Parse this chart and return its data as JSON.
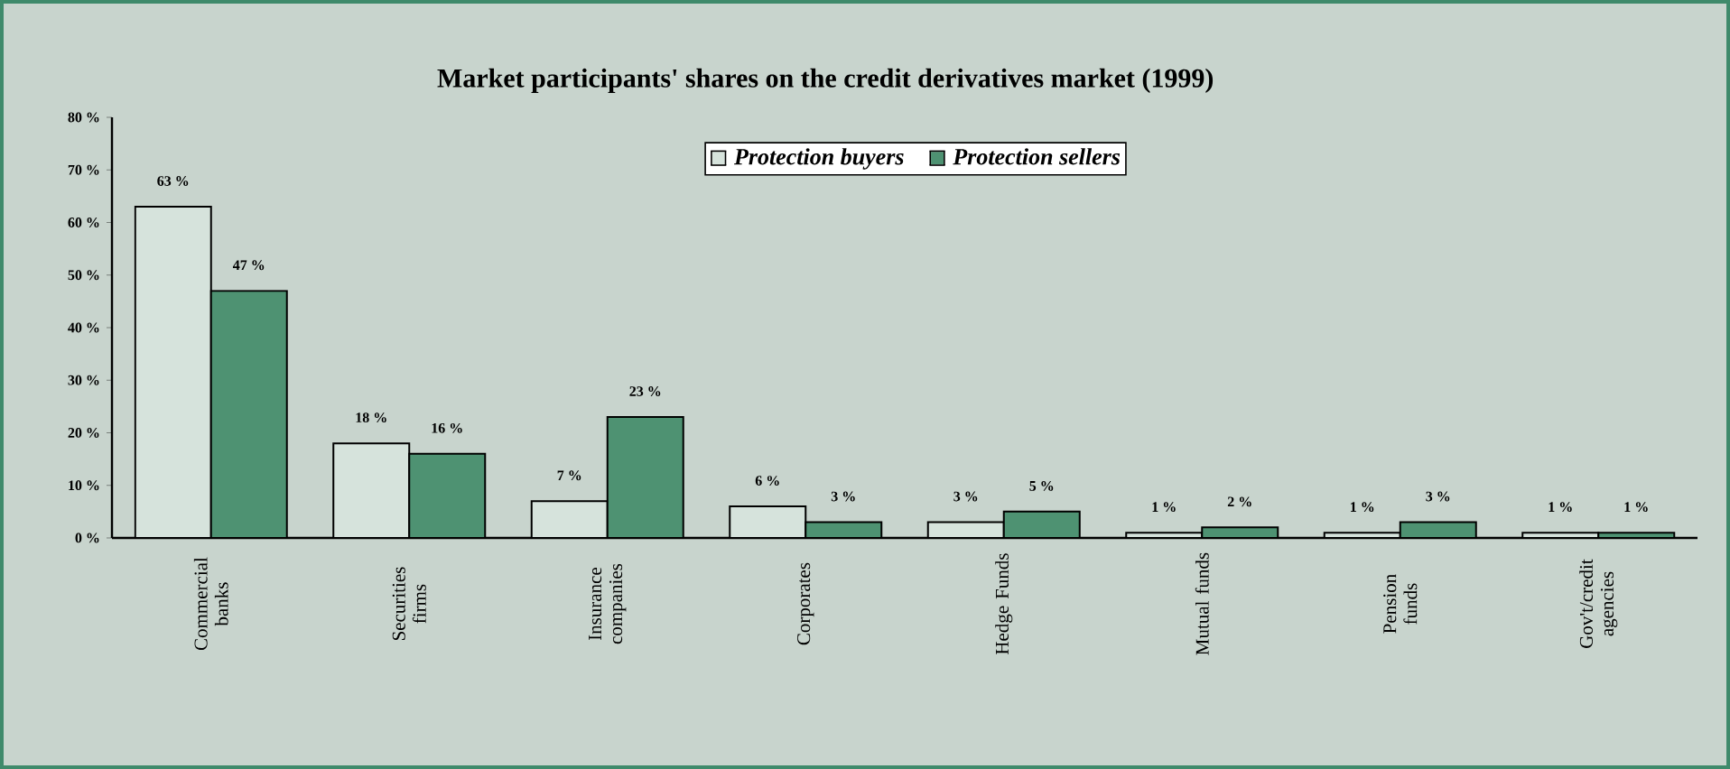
{
  "chart_data": {
    "type": "bar",
    "title": "Market participants' shares on the credit derivatives market (1999)",
    "categories": [
      "Commercial banks",
      "Securities firms",
      "Insurance companies",
      "Corporates",
      "Hedge Funds",
      "Mutual funds",
      "Pension funds",
      "Gov't/credit agencies"
    ],
    "series": [
      {
        "name": "Protection buyers",
        "color": "#d6e3dc",
        "values": [
          63,
          18,
          7,
          6,
          3,
          1,
          1,
          1
        ],
        "value_labels": [
          "63 %",
          "18 %",
          "7 %",
          "6 %",
          "3 %",
          "1 %",
          "1 %",
          "1 %"
        ]
      },
      {
        "name": "Protection sellers",
        "color": "#4e9272",
        "values": [
          47,
          16,
          23,
          3,
          5,
          2,
          3,
          1
        ],
        "value_labels": [
          "47 %",
          "16 %",
          "23 %",
          "3 %",
          "5 %",
          "2 %",
          "3 %",
          "1 %"
        ]
      }
    ],
    "ylim": [
      0,
      80
    ],
    "yticks": [
      {
        "value": 0,
        "label": "0 %"
      },
      {
        "value": 10,
        "label": "10 %"
      },
      {
        "value": 20,
        "label": "20 %"
      },
      {
        "value": 30,
        "label": "30 %"
      },
      {
        "value": 40,
        "label": "40 %"
      },
      {
        "value": 50,
        "label": "50 %"
      },
      {
        "value": 60,
        "label": "60 %"
      },
      {
        "value": 70,
        "label": "70 %"
      },
      {
        "value": 80,
        "label": "80 %"
      }
    ],
    "grid": false,
    "legend": "top"
  }
}
